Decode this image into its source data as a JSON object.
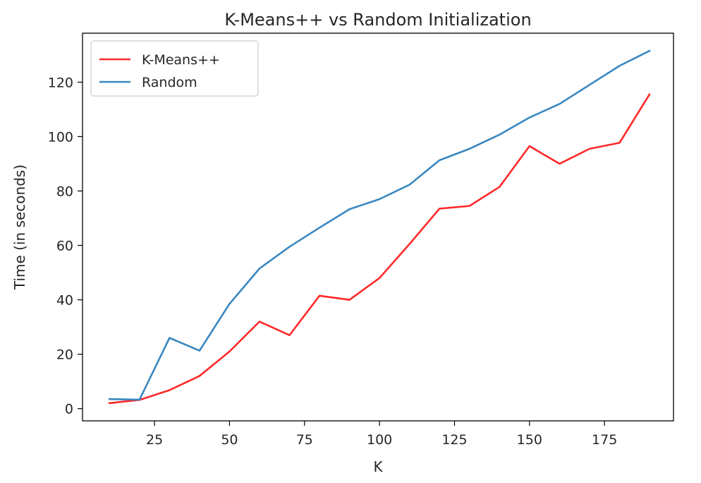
{
  "chart_data": {
    "type": "line",
    "title": "K-Means++ vs Random Initialization",
    "xlabel": "K",
    "ylabel": "Time (in seconds)",
    "x": [
      10,
      20,
      30,
      40,
      50,
      60,
      70,
      80,
      90,
      100,
      110,
      120,
      130,
      140,
      150,
      160,
      170,
      180,
      190
    ],
    "series": [
      {
        "name": "K-Means++",
        "color": "#ff2a2a",
        "values": [
          2.0,
          3.2,
          6.8,
          12.0,
          21.0,
          32.0,
          27.0,
          41.5,
          40.0,
          48.0,
          60.5,
          73.5,
          74.5,
          81.5,
          96.5,
          90.0,
          95.5,
          97.7,
          115.5
        ]
      },
      {
        "name": "Random",
        "color": "#3a87c0",
        "values": [
          3.5,
          3.3,
          26.0,
          21.3,
          38.5,
          51.5,
          59.5,
          66.5,
          73.3,
          77.0,
          82.3,
          91.3,
          95.5,
          100.7,
          107.0,
          112.0,
          119.0,
          126.0,
          131.5
        ]
      }
    ],
    "xlim": [
      1,
      198
    ],
    "ylim": [
      -4.5,
      138
    ],
    "xticks": [
      25,
      50,
      75,
      100,
      125,
      150,
      175
    ],
    "yticks": [
      0,
      20,
      40,
      60,
      80,
      100,
      120
    ],
    "grid": false,
    "legend_position": "top-left"
  }
}
